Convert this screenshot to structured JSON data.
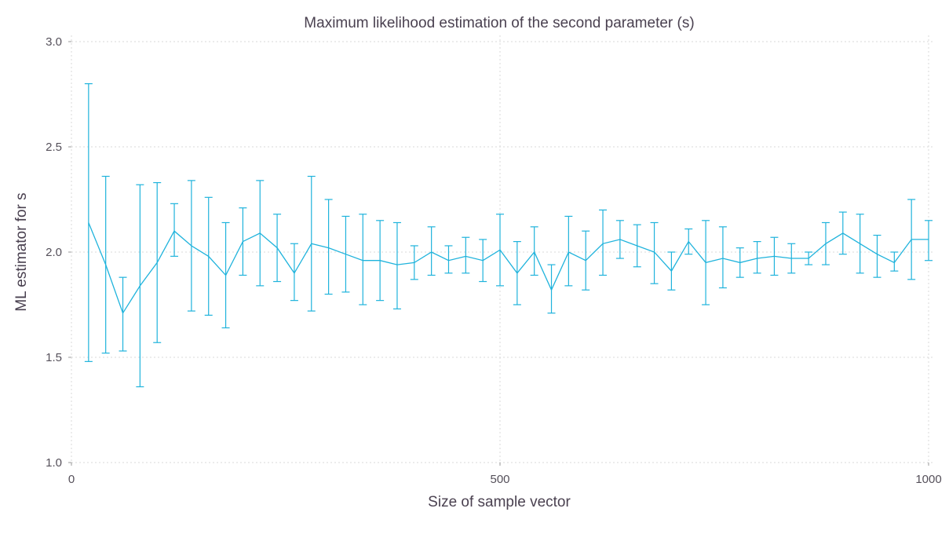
{
  "chart_data": {
    "type": "line",
    "title": "Maximum likelihood estimation of the second parameter (s)",
    "xlabel": "Size of sample vector",
    "ylabel": "ML estimator for s",
    "xlim": [
      0,
      1000
    ],
    "ylim": [
      1.0,
      3.0
    ],
    "xticks": [
      0,
      500,
      1000
    ],
    "yticks": [
      1.0,
      1.5,
      2.0,
      2.5,
      3.0
    ],
    "xtick_labels": [
      "0",
      "500",
      "1000"
    ],
    "ytick_labels": [
      "1.0",
      "1.5",
      "2.0",
      "2.5",
      "3.0"
    ],
    "grid": true,
    "color": "#1fb3dc",
    "series": [
      {
        "x": [
          20,
          40,
          60,
          80,
          100,
          120,
          140,
          160,
          180,
          200,
          220,
          240,
          260,
          280,
          300,
          320,
          340,
          360,
          380,
          400,
          420,
          440,
          460,
          480,
          500,
          520,
          540,
          560,
          580,
          600,
          620,
          640,
          660,
          680,
          700,
          720,
          740,
          760,
          780,
          800,
          820,
          840,
          860,
          880,
          900,
          920,
          940,
          960,
          980,
          1000
        ],
        "y": [
          2.14,
          1.94,
          1.71,
          1.84,
          1.95,
          2.1,
          2.03,
          1.98,
          1.89,
          2.05,
          2.09,
          2.02,
          1.9,
          2.04,
          2.02,
          1.99,
          1.96,
          1.96,
          1.94,
          1.95,
          2.0,
          1.96,
          1.98,
          1.96,
          2.01,
          1.9,
          2.0,
          1.82,
          2.0,
          1.96,
          2.04,
          2.06,
          2.03,
          2.0,
          1.91,
          2.05,
          1.95,
          1.97,
          1.95,
          1.97,
          1.98,
          1.97,
          1.97,
          2.04,
          2.09,
          2.04,
          1.99,
          1.95,
          2.06,
          2.06
        ],
        "err_low": [
          1.48,
          1.52,
          1.53,
          1.36,
          1.57,
          1.98,
          1.72,
          1.7,
          1.64,
          1.89,
          1.84,
          1.86,
          1.77,
          1.72,
          1.8,
          1.81,
          1.75,
          1.77,
          1.73,
          1.87,
          1.89,
          1.9,
          1.9,
          1.86,
          1.84,
          1.75,
          1.89,
          1.71,
          1.84,
          1.82,
          1.89,
          1.97,
          1.93,
          1.85,
          1.82,
          1.99,
          1.75,
          1.83,
          1.88,
          1.9,
          1.89,
          1.9,
          1.94,
          1.94,
          1.99,
          1.9,
          1.88,
          1.91,
          1.87,
          1.96
        ],
        "err_high": [
          2.8,
          2.36,
          1.88,
          2.32,
          2.33,
          2.23,
          2.34,
          2.26,
          2.14,
          2.21,
          2.34,
          2.18,
          2.04,
          2.36,
          2.25,
          2.17,
          2.18,
          2.15,
          2.14,
          2.03,
          2.12,
          2.03,
          2.07,
          2.06,
          2.18,
          2.05,
          2.12,
          1.94,
          2.17,
          2.1,
          2.2,
          2.15,
          2.13,
          2.14,
          2.0,
          2.11,
          2.15,
          2.12,
          2.02,
          2.05,
          2.07,
          2.04,
          2.0,
          2.14,
          2.19,
          2.18,
          2.08,
          2.0,
          2.25,
          2.15
        ]
      }
    ]
  }
}
